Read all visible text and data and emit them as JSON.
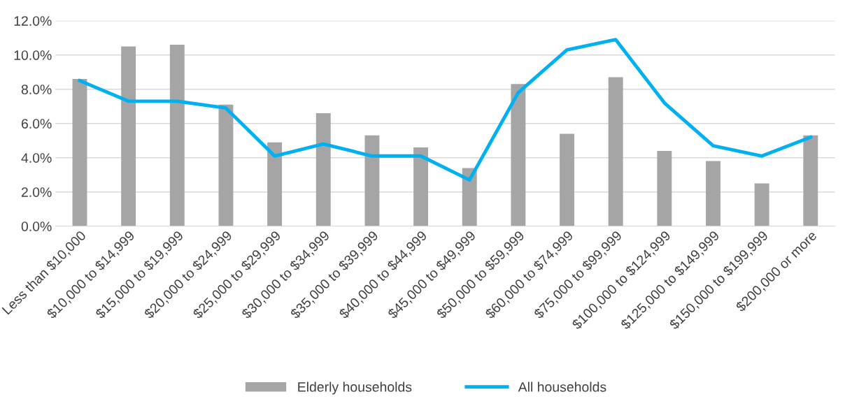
{
  "chart_data": {
    "type": "bar",
    "categories": [
      "Less than $10,000",
      "$10,000 to $14,999",
      "$15,000 to $19,999",
      "$20,000 to $24,999",
      "$25,000 to $29,999",
      "$30,000 to $34,999",
      "$35,000 to $39,999",
      "$40,000 to $44,999",
      "$45,000 to $49,999",
      "$50,000 to $59,999",
      "$60,000 to $74,999",
      "$75,000 to $99,999",
      "$100,000 to $124,999",
      "$125,000 to $149,999",
      "$150,000 to $199,999",
      "$200,000 or more"
    ],
    "series": [
      {
        "name": "Elderly households",
        "color": "#a5a5a5",
        "values": [
          8.6,
          10.5,
          10.6,
          7.1,
          4.9,
          6.6,
          5.3,
          4.6,
          3.4,
          8.3,
          5.4,
          8.7,
          4.4,
          3.8,
          2.5,
          5.3
        ]
      },
      {
        "name": "All households",
        "type": "line",
        "color": "#00b0f0",
        "values": [
          8.5,
          7.3,
          7.3,
          6.9,
          4.1,
          4.8,
          4.1,
          4.1,
          2.7,
          7.8,
          10.3,
          10.9,
          7.2,
          4.7,
          4.1,
          5.2
        ]
      }
    ],
    "ylim": [
      0,
      12
    ],
    "yticks": [
      {
        "value": 0,
        "label": "0.0%"
      },
      {
        "value": 2,
        "label": "2.0%"
      },
      {
        "value": 4,
        "label": "4.0%"
      },
      {
        "value": 6,
        "label": "6.0%"
      },
      {
        "value": 8,
        "label": "8.0%"
      },
      {
        "value": 10,
        "label": "10.0%"
      },
      {
        "value": 12,
        "label": "12.0%"
      }
    ],
    "grid": "y",
    "legend": "bottom",
    "marker": "none",
    "line_style": "solid"
  }
}
